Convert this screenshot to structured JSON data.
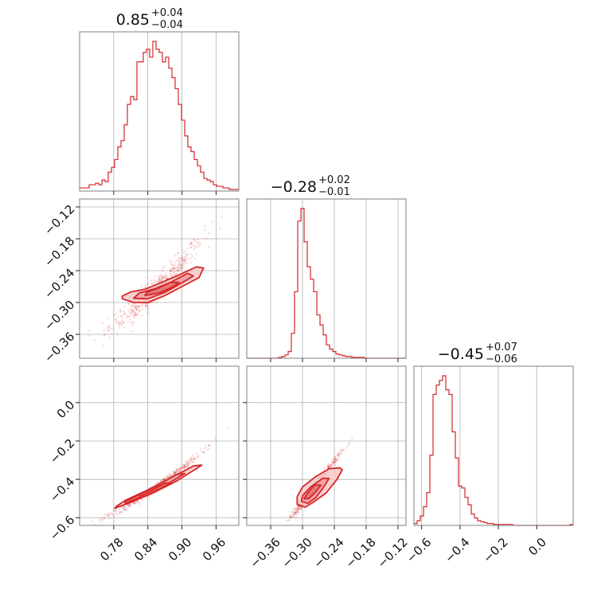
{
  "chart_data": {
    "type": "corner",
    "color": "#d62728",
    "parameters": [
      {
        "title_main": "0.85",
        "title_plus": "+0.04",
        "title_minus": "−0.04",
        "range": [
          0.72,
          1.0
        ],
        "ticks": [
          0.78,
          0.84,
          0.9,
          0.96
        ],
        "tick_labels": [
          "0.78",
          "0.84",
          "0.90",
          "0.96"
        ]
      },
      {
        "title_main": "−0.28",
        "title_plus": "+0.02",
        "title_minus": "−0.01",
        "range": [
          -0.405,
          -0.105
        ],
        "ticks": [
          -0.36,
          -0.3,
          -0.24,
          -0.18,
          -0.12
        ],
        "tick_labels": [
          "−0.36",
          "−0.30",
          "−0.24",
          "−0.18",
          "−0.12"
        ]
      },
      {
        "title_main": "−0.45",
        "title_plus": "+0.07",
        "title_minus": "−0.06",
        "range": [
          -0.64,
          0.19
        ],
        "ticks": [
          -0.6,
          -0.4,
          -0.2,
          0.0
        ],
        "tick_labels": [
          "−0.6",
          "−0.4",
          "−0.2",
          "0.0"
        ]
      }
    ],
    "histograms": [
      {
        "bins": [
          0.72,
          0.7256,
          0.7312,
          0.7368,
          0.7424,
          0.748,
          0.7536,
          0.7592,
          0.7648,
          0.7704,
          0.776,
          0.7816,
          0.7872,
          0.7928,
          0.7984,
          0.804,
          0.8096,
          0.8152,
          0.8208,
          0.8264,
          0.832,
          0.8376,
          0.8432,
          0.8488,
          0.8544,
          0.86,
          0.8656,
          0.8712,
          0.8768,
          0.8824,
          0.888,
          0.8936,
          0.8992,
          0.9048,
          0.9104,
          0.916,
          0.9216,
          0.9272,
          0.9328,
          0.9384,
          0.944,
          0.9496,
          0.9552,
          0.9608,
          0.9664,
          0.972,
          0.9776,
          0.9832,
          0.9888,
          0.9944,
          1.0
        ],
        "counts": [
          2,
          2,
          2,
          4,
          4,
          5,
          4,
          7,
          6,
          12,
          15,
          20,
          28,
          32,
          42,
          55,
          60,
          58,
          82,
          82,
          88,
          90,
          85,
          95,
          90,
          88,
          82,
          85,
          78,
          72,
          65,
          55,
          45,
          35,
          28,
          25,
          20,
          16,
          12,
          8,
          7,
          6,
          4,
          3,
          3,
          2,
          2,
          1,
          1,
          1
        ]
      },
      {
        "bins": [
          -0.405,
          -0.399,
          -0.393,
          -0.387,
          -0.381,
          -0.375,
          -0.369,
          -0.363,
          -0.357,
          -0.351,
          -0.345,
          -0.339,
          -0.333,
          -0.327,
          -0.321,
          -0.315,
          -0.309,
          -0.303,
          -0.297,
          -0.291,
          -0.285,
          -0.279,
          -0.273,
          -0.267,
          -0.261,
          -0.255,
          -0.249,
          -0.243,
          -0.237,
          -0.231,
          -0.225,
          -0.219,
          -0.213,
          -0.207,
          -0.201,
          -0.195,
          -0.189,
          -0.183,
          -0.177,
          -0.171,
          -0.165,
          -0.159,
          -0.153,
          -0.147,
          -0.141,
          -0.135,
          -0.129,
          -0.123,
          -0.117,
          -0.111,
          -0.105
        ],
        "counts": [
          0,
          0,
          0,
          0,
          0,
          0,
          0,
          0,
          0,
          0,
          1,
          2,
          4,
          8,
          30,
          80,
          165,
          180,
          140,
          110,
          95,
          80,
          52,
          40,
          28,
          16,
          11,
          8,
          5,
          4,
          3,
          2,
          2,
          1,
          1,
          1,
          1,
          0,
          0,
          0,
          0,
          0,
          0,
          0,
          0,
          0,
          0,
          0,
          0,
          0
        ]
      },
      {
        "bins": [
          -0.64,
          -0.6234,
          -0.6068,
          -0.5902,
          -0.5736,
          -0.557,
          -0.5404,
          -0.5238,
          -0.5072,
          -0.4906,
          -0.474,
          -0.4574,
          -0.4408,
          -0.4242,
          -0.4076,
          -0.391,
          -0.3744,
          -0.3578,
          -0.3412,
          -0.3246,
          -0.308,
          -0.2914,
          -0.2748,
          -0.2582,
          -0.2416,
          -0.225,
          -0.2084,
          -0.1918,
          -0.1752,
          -0.1586,
          -0.142,
          -0.1254,
          -0.1088,
          -0.0922,
          -0.0756,
          -0.059,
          -0.0424,
          -0.0258,
          -0.0092,
          0.0074,
          0.024,
          0.0406,
          0.0572,
          0.0738,
          0.0904,
          0.107,
          0.1236,
          0.1402,
          0.1568,
          0.1734,
          0.19
        ],
        "counts": [
          2,
          5,
          10,
          20,
          35,
          75,
          140,
          150,
          155,
          160,
          145,
          140,
          100,
          72,
          42,
          40,
          30,
          22,
          12,
          8,
          5,
          4,
          3,
          2,
          2,
          1,
          1,
          1,
          1,
          1,
          1,
          0,
          0,
          0,
          0,
          0,
          0,
          0,
          0,
          0,
          0,
          0,
          0,
          0,
          0,
          0,
          0,
          0,
          0,
          1
        ]
      }
    ],
    "pairs": [
      {
        "x_param": 0,
        "y_param": 1,
        "center": [
          0.855,
          -0.275
        ],
        "extent_along": 0.075,
        "slope": 1.0,
        "curvature": 2.0,
        "width": 0.012,
        "contours": [
          [
            [
              0.795,
              -0.293
            ],
            [
              0.815,
              -0.3
            ],
            [
              0.84,
              -0.3
            ],
            [
              0.87,
              -0.287
            ],
            [
              0.9,
              -0.27
            ],
            [
              0.93,
              -0.253
            ],
            [
              0.938,
              -0.235
            ],
            [
              0.925,
              -0.233
            ],
            [
              0.895,
              -0.248
            ],
            [
              0.865,
              -0.262
            ],
            [
              0.835,
              -0.275
            ],
            [
              0.81,
              -0.28
            ],
            [
              0.795,
              -0.288
            ]
          ],
          [
            [
              0.815,
              -0.292
            ],
            [
              0.84,
              -0.293
            ],
            [
              0.87,
              -0.281
            ],
            [
              0.9,
              -0.263
            ],
            [
              0.92,
              -0.25
            ],
            [
              0.91,
              -0.245
            ],
            [
              0.88,
              -0.262
            ],
            [
              0.85,
              -0.275
            ],
            [
              0.825,
              -0.282
            ]
          ],
          [
            [
              0.835,
              -0.287
            ],
            [
              0.86,
              -0.282
            ],
            [
              0.885,
              -0.27
            ],
            [
              0.895,
              -0.262
            ],
            [
              0.88,
              -0.262
            ],
            [
              0.858,
              -0.273
            ],
            [
              0.838,
              -0.281
            ]
          ]
        ]
      },
      {
        "x_param": 0,
        "y_param": 2,
        "center": [
          0.85,
          -0.45
        ],
        "extent_along": 0.075,
        "slope": 2.0,
        "curvature": 3.0,
        "width": 0.01,
        "contours": [
          [
            [
              0.782,
              -0.55
            ],
            [
              0.81,
              -0.52
            ],
            [
              0.85,
              -0.47
            ],
            [
              0.89,
              -0.41
            ],
            [
              0.925,
              -0.345
            ],
            [
              0.935,
              -0.325
            ],
            [
              0.92,
              -0.33
            ],
            [
              0.88,
              -0.395
            ],
            [
              0.84,
              -0.455
            ],
            [
              0.8,
              -0.51
            ],
            [
              0.785,
              -0.54
            ]
          ],
          [
            [
              0.8,
              -0.525
            ],
            [
              0.84,
              -0.475
            ],
            [
              0.88,
              -0.415
            ],
            [
              0.905,
              -0.37
            ],
            [
              0.89,
              -0.375
            ],
            [
              0.855,
              -0.435
            ],
            [
              0.815,
              -0.495
            ],
            [
              0.8,
              -0.515
            ]
          ],
          [
            [
              0.825,
              -0.5
            ],
            [
              0.855,
              -0.46
            ],
            [
              0.88,
              -0.42
            ],
            [
              0.87,
              -0.42
            ],
            [
              0.845,
              -0.46
            ],
            [
              0.825,
              -0.49
            ]
          ]
        ]
      },
      {
        "x_param": 1,
        "y_param": 2,
        "center": [
          -0.28,
          -0.45
        ],
        "extent_along": 0.045,
        "slope": 3.6,
        "curvature": 0.0,
        "width": 0.011,
        "contours": [
          [
            [
              -0.31,
              -0.53
            ],
            [
              -0.295,
              -0.545
            ],
            [
              -0.28,
              -0.52
            ],
            [
              -0.255,
              -0.47
            ],
            [
              -0.235,
              -0.4
            ],
            [
              -0.225,
              -0.35
            ],
            [
              -0.23,
              -0.34
            ],
            [
              -0.25,
              -0.345
            ],
            [
              -0.275,
              -0.385
            ],
            [
              -0.3,
              -0.44
            ],
            [
              -0.31,
              -0.49
            ]
          ],
          [
            [
              -0.302,
              -0.515
            ],
            [
              -0.29,
              -0.525
            ],
            [
              -0.275,
              -0.495
            ],
            [
              -0.26,
              -0.44
            ],
            [
              -0.25,
              -0.395
            ],
            [
              -0.262,
              -0.395
            ],
            [
              -0.285,
              -0.44
            ],
            [
              -0.3,
              -0.485
            ]
          ],
          [
            [
              -0.297,
              -0.5
            ],
            [
              -0.288,
              -0.5
            ],
            [
              -0.275,
              -0.465
            ],
            [
              -0.265,
              -0.43
            ],
            [
              -0.278,
              -0.43
            ],
            [
              -0.29,
              -0.47
            ]
          ]
        ]
      }
    ]
  }
}
